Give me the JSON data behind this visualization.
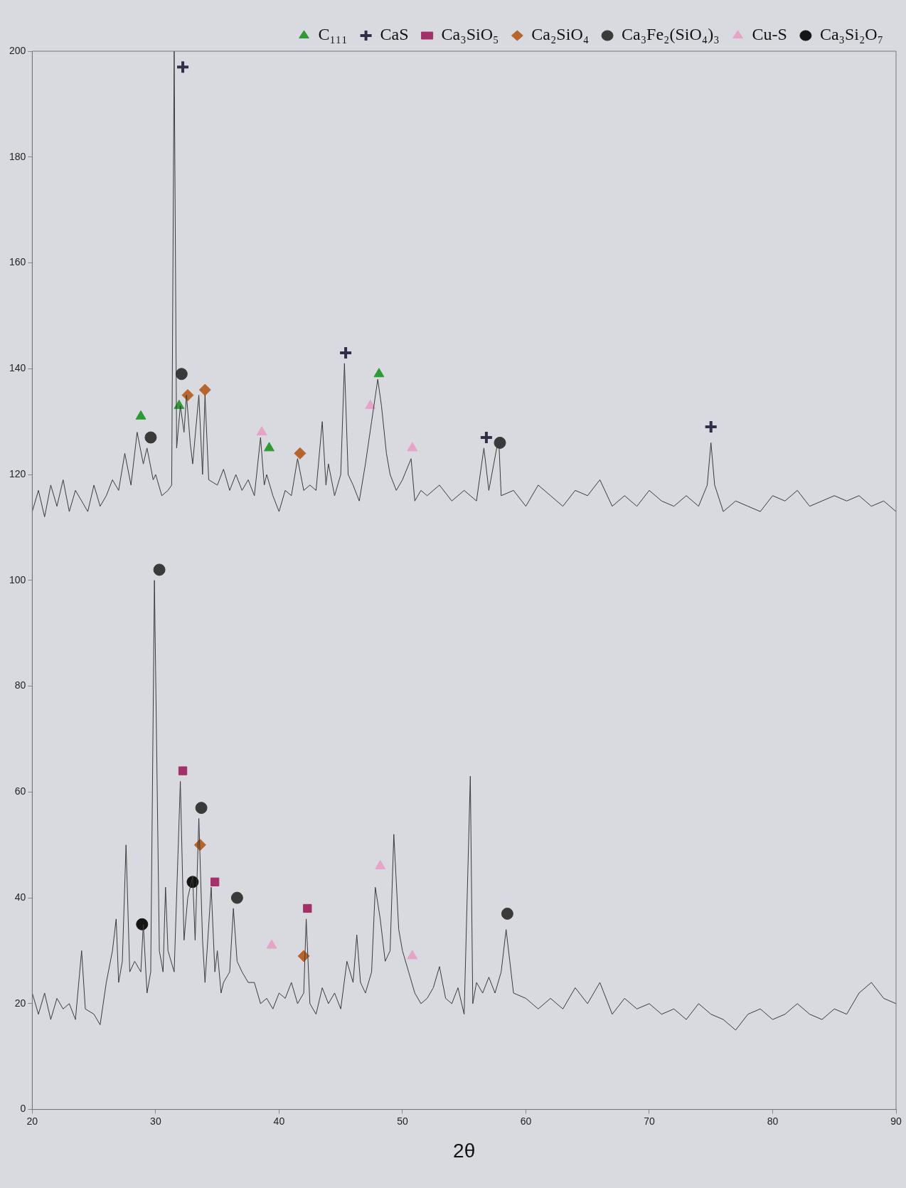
{
  "chart_data": {
    "type": "line",
    "xlabel": "2θ",
    "xlim": [
      20,
      90
    ],
    "xticks": [
      20,
      30,
      40,
      50,
      60,
      70,
      80,
      90
    ],
    "ylim": [
      0,
      200
    ],
    "yticks": [
      0,
      20,
      40,
      60,
      80,
      100,
      120,
      140,
      160,
      180,
      200
    ],
    "grid": false,
    "legend": "top right",
    "series": [
      {
        "color": "#3a3a3a",
        "marker": "none",
        "x": [
          20,
          20.5,
          21,
          21.5,
          22,
          22.5,
          23,
          23.5,
          24,
          24.5,
          25,
          25.5,
          26,
          26.5,
          27,
          27.5,
          28,
          28.5,
          29,
          29.3,
          29.8,
          30,
          30.5,
          31,
          31.3,
          31.5,
          31.7,
          32,
          32.3,
          32.5,
          32.8,
          33,
          33.5,
          33.8,
          34,
          34.3,
          35,
          35.5,
          36,
          36.5,
          37,
          37.5,
          38,
          38.5,
          38.8,
          39,
          39.5,
          40,
          40.5,
          41,
          41.5,
          42,
          42.5,
          43,
          43.5,
          43.8,
          44,
          44.5,
          45,
          45.3,
          45.6,
          46,
          46.5,
          47,
          47.5,
          48,
          48.3,
          48.7,
          49,
          49.5,
          50,
          50.7,
          51,
          51.5,
          52,
          53,
          54,
          55,
          56,
          56.6,
          57,
          57.8,
          58,
          59,
          60,
          61,
          62,
          63,
          64,
          65,
          66,
          67,
          68,
          69,
          70,
          71,
          72,
          73,
          74,
          74.7,
          75,
          75.3,
          76,
          77,
          78,
          79,
          80,
          81,
          82,
          83,
          84,
          85,
          86,
          87,
          88,
          89,
          90
        ],
        "values": [
          113,
          117,
          112,
          118,
          114,
          119,
          113,
          117,
          115,
          113,
          118,
          114,
          116,
          119,
          117,
          124,
          118,
          128,
          122,
          125,
          119,
          120,
          116,
          117,
          118,
          200,
          125,
          133,
          128,
          135,
          126,
          122,
          135,
          120,
          135,
          119,
          118,
          121,
          117,
          120,
          117,
          119,
          116,
          127,
          118,
          120,
          116,
          113,
          117,
          116,
          123,
          117,
          118,
          117,
          130,
          118,
          122,
          116,
          120,
          141,
          120,
          118,
          115,
          122,
          130,
          138,
          133,
          124,
          120,
          117,
          119,
          123,
          115,
          117,
          116,
          118,
          115,
          117,
          115,
          125,
          117,
          127,
          116,
          117,
          114,
          118,
          116,
          114,
          117,
          116,
          119,
          114,
          116,
          114,
          117,
          115,
          114,
          116,
          114,
          118,
          126,
          118,
          113,
          115,
          114,
          113,
          116,
          115,
          117,
          114,
          115,
          116,
          115,
          116,
          114,
          115,
          113
        ]
      },
      {
        "color": "#3a3a3a",
        "marker": "none",
        "x": [
          20,
          20.5,
          21,
          21.5,
          22,
          22.5,
          23,
          23.5,
          24,
          24.3,
          25,
          25.5,
          26,
          26.5,
          26.8,
          27,
          27.3,
          27.6,
          27.9,
          28.3,
          28.8,
          29,
          29.3,
          29.6,
          29.9,
          30.3,
          30.6,
          30.8,
          31,
          31.5,
          32,
          32.3,
          32.6,
          33,
          33.2,
          33.5,
          33.8,
          34,
          34.5,
          34.8,
          35,
          35.3,
          35.5,
          36,
          36.3,
          36.6,
          37,
          37.5,
          38,
          38.5,
          39,
          39.5,
          40,
          40.5,
          41,
          41.5,
          42,
          42.2,
          42.5,
          43,
          43.5,
          44,
          44.5,
          45,
          45.5,
          46,
          46.3,
          46.6,
          47,
          47.5,
          47.8,
          48.2,
          48.6,
          49,
          49.3,
          49.7,
          50,
          50.5,
          51,
          51.5,
          52,
          52.5,
          53,
          53.5,
          54,
          54.5,
          55,
          55.5,
          55.7,
          56,
          56.5,
          57,
          57.5,
          58,
          58.4,
          58.7,
          59,
          60,
          61,
          62,
          63,
          64,
          65,
          66,
          67,
          68,
          69,
          70,
          71,
          72,
          73,
          74,
          75,
          76,
          77,
          78,
          79,
          80,
          81,
          82,
          83,
          84,
          85,
          86,
          87,
          88,
          89,
          90
        ],
        "values": [
          22,
          18,
          22,
          17,
          21,
          19,
          20,
          17,
          30,
          19,
          18,
          16,
          24,
          30,
          36,
          24,
          28,
          50,
          26,
          28,
          26,
          35,
          22,
          26,
          100,
          30,
          26,
          42,
          30,
          26,
          62,
          32,
          40,
          44,
          32,
          55,
          32,
          24,
          42,
          26,
          30,
          22,
          24,
          26,
          38,
          28,
          26,
          24,
          24,
          20,
          21,
          19,
          22,
          21,
          24,
          20,
          22,
          36,
          20,
          18,
          23,
          20,
          22,
          19,
          28,
          24,
          33,
          24,
          22,
          26,
          42,
          36,
          28,
          30,
          52,
          34,
          30,
          26,
          22,
          20,
          21,
          23,
          27,
          21,
          20,
          23,
          18,
          63,
          20,
          24,
          22,
          25,
          22,
          26,
          34,
          28,
          22,
          21,
          19,
          21,
          19,
          23,
          20,
          24,
          18,
          21,
          19,
          20,
          18,
          19,
          17,
          20,
          18,
          17,
          15,
          18,
          19,
          17,
          18,
          20,
          18,
          17,
          19,
          18,
          22,
          24,
          21,
          20
        ]
      },
      {
        "type": "scatter",
        "name": "C₁₁₁",
        "color": "#2e9a35",
        "marker": "triangle",
        "x": [
          28.8,
          31.9,
          39.2,
          48.1
        ],
        "values": [
          131,
          133,
          125,
          139
        ]
      },
      {
        "type": "scatter",
        "name": "CaS",
        "color": "#2f2f48",
        "marker": "cross",
        "x": [
          32.2,
          45.4,
          56.8,
          75.0
        ],
        "values": [
          197,
          143,
          127,
          129
        ]
      },
      {
        "type": "scatter",
        "name": "Ca₃SiO₅",
        "color": "#a33068",
        "marker": "square",
        "x": [
          32.2,
          34.8,
          42.3
        ],
        "values": [
          64,
          43,
          38
        ]
      },
      {
        "type": "scatter",
        "name": "Ca₂SiO₄",
        "color": "#b8652d",
        "marker": "diamond",
        "x": [
          32.6,
          34.0,
          41.7,
          33.6,
          42.0
        ],
        "values": [
          135,
          136,
          124,
          50,
          29
        ]
      },
      {
        "type": "scatter",
        "name": "Ca₃Fe₂(SiO₄)₃",
        "color": "#3a3a3a",
        "marker": "circle",
        "x": [
          29.6,
          32.1,
          57.9,
          30.3,
          33.7,
          36.6,
          58.5
        ],
        "values": [
          127,
          139,
          126,
          102,
          57,
          40,
          37
        ]
      },
      {
        "type": "scatter",
        "name": "Cu-S",
        "color": "#e6a4c6",
        "marker": "triangle",
        "x": [
          38.6,
          47.4,
          50.8,
          39.4,
          48.2,
          50.8
        ],
        "values": [
          128,
          133,
          125,
          31,
          46,
          29
        ]
      },
      {
        "type": "scatter",
        "name": "Ca₃Si₂O₇",
        "color": "#151515",
        "marker": "circle",
        "x": [
          28.9,
          33.0
        ],
        "values": [
          35,
          43
        ]
      }
    ]
  }
}
